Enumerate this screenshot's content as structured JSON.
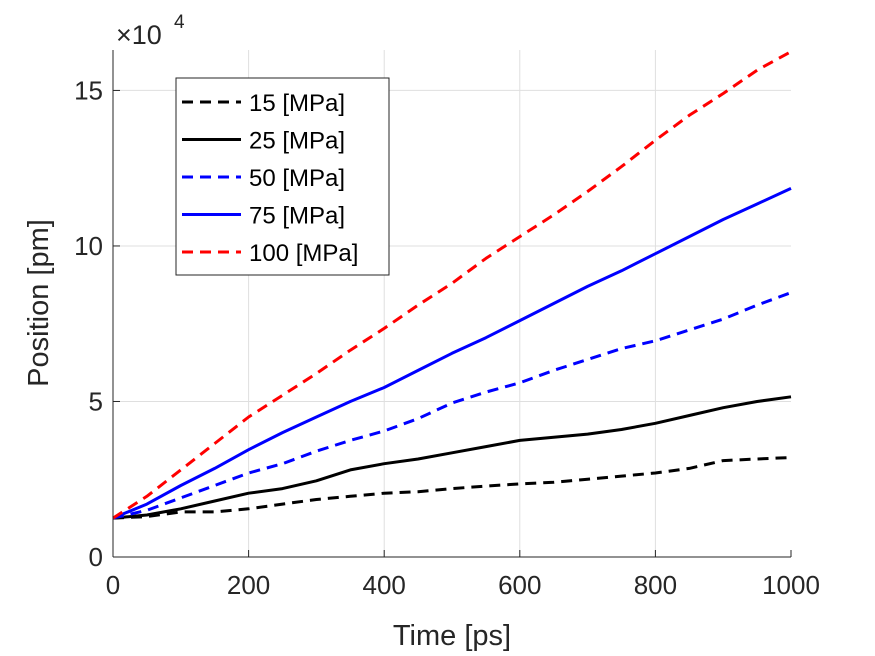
{
  "chart_data": {
    "type": "line",
    "title": "",
    "xlabel": "Time [ps]",
    "ylabel": "Position [pm]",
    "xlim": [
      0,
      1000
    ],
    "ylim": [
      0,
      16.3
    ],
    "y_scale_label": {
      "base": "×10",
      "exponent": "4"
    },
    "xticks": [
      0,
      200,
      400,
      600,
      800,
      1000
    ],
    "xtick_labels": [
      "0",
      "200",
      "400",
      "600",
      "800",
      "1000"
    ],
    "yticks": [
      0,
      5,
      10,
      15
    ],
    "ytick_labels": [
      "0",
      "5",
      "10",
      "15"
    ],
    "grid": true,
    "legend_position": "top-left",
    "x": [
      0,
      50,
      100,
      150,
      200,
      250,
      300,
      350,
      400,
      450,
      500,
      550,
      600,
      650,
      700,
      750,
      800,
      850,
      900,
      950,
      1000
    ],
    "series": [
      {
        "name": "15 [MPa]",
        "color": "#000000",
        "style": "dashed",
        "values": [
          1.25,
          1.3,
          1.45,
          1.45,
          1.55,
          1.7,
          1.85,
          1.95,
          2.05,
          2.1,
          2.2,
          2.28,
          2.35,
          2.4,
          2.5,
          2.6,
          2.7,
          2.85,
          3.1,
          3.15,
          3.2
        ]
      },
      {
        "name": "25 [MPa]",
        "color": "#000000",
        "style": "solid",
        "values": [
          1.25,
          1.35,
          1.55,
          1.8,
          2.05,
          2.2,
          2.45,
          2.8,
          3.0,
          3.15,
          3.35,
          3.55,
          3.75,
          3.85,
          3.95,
          4.1,
          4.3,
          4.55,
          4.8,
          5.0,
          5.15
        ]
      },
      {
        "name": "50 [MPa]",
        "color": "#0000ff",
        "style": "dashed",
        "values": [
          1.25,
          1.5,
          1.9,
          2.3,
          2.7,
          3.0,
          3.4,
          3.75,
          4.05,
          4.45,
          4.95,
          5.3,
          5.6,
          6.0,
          6.35,
          6.7,
          6.95,
          7.3,
          7.65,
          8.1,
          8.5
        ]
      },
      {
        "name": "75 [MPa]",
        "color": "#0000ff",
        "style": "solid",
        "values": [
          1.25,
          1.7,
          2.3,
          2.85,
          3.45,
          4.0,
          4.5,
          5.0,
          5.45,
          6.0,
          6.55,
          7.05,
          7.6,
          8.15,
          8.7,
          9.2,
          9.75,
          10.3,
          10.85,
          11.35,
          11.85
        ]
      },
      {
        "name": "100 [MPa]",
        "color": "#ff0000",
        "style": "dashed",
        "values": [
          1.25,
          1.95,
          2.8,
          3.65,
          4.5,
          5.2,
          5.9,
          6.65,
          7.35,
          8.1,
          8.8,
          9.6,
          10.3,
          11.0,
          11.75,
          12.55,
          13.4,
          14.2,
          14.9,
          15.65,
          16.25
        ]
      }
    ]
  }
}
